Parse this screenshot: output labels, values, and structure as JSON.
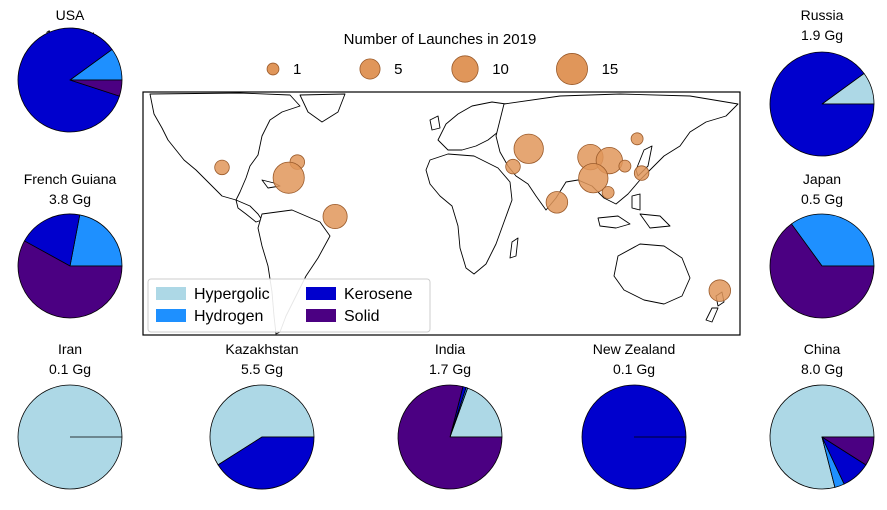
{
  "chart_data": [
    {
      "type": "scatter",
      "title": "Number of Launches in 2019",
      "size_legend": {
        "values": [
          1,
          5,
          10,
          15
        ],
        "labels": [
          "1",
          "5",
          "10",
          "15"
        ]
      },
      "marker_color": "#e0965a",
      "launch_sites": [
        {
          "lon": -120.6,
          "lat": 34.7,
          "launches": 2
        },
        {
          "lon": -75.5,
          "lat": 37.9,
          "launches": 2
        },
        {
          "lon": -80.6,
          "lat": 28.5,
          "launches": 15
        },
        {
          "lon": -52.8,
          "lat": 5.2,
          "launches": 8
        },
        {
          "lon": 63.3,
          "lat": 45.9,
          "launches": 13
        },
        {
          "lon": 53.9,
          "lat": 35.2,
          "launches": 2
        },
        {
          "lon": 80.2,
          "lat": 13.7,
          "launches": 6
        },
        {
          "lon": 100.3,
          "lat": 40.9,
          "launches": 9
        },
        {
          "lon": 111.6,
          "lat": 38.8,
          "launches": 10
        },
        {
          "lon": 102.0,
          "lat": 28.2,
          "launches": 13
        },
        {
          "lon": 110.9,
          "lat": 19.6,
          "launches": 1
        },
        {
          "lon": 121.0,
          "lat": 35.5,
          "launches": 1
        },
        {
          "lon": 128.3,
          "lat": 51.9,
          "launches": 1
        },
        {
          "lon": 131.0,
          "lat": 31.3,
          "launches": 2
        },
        {
          "lon": 177.9,
          "lat": -39.3,
          "launches": 6
        }
      ]
    },
    {
      "type": "pie",
      "legend": {
        "placement": "bottom-left",
        "entries": [
          {
            "label": "Hypergolic",
            "color": "#add8e6"
          },
          {
            "label": "Kerosene",
            "color": "#0000cd"
          },
          {
            "label": "Hydrogen",
            "color": "#1e90ff"
          },
          {
            "label": "Solid",
            "color": "#4b0082"
          }
        ]
      },
      "categories": [
        "Hypergolic",
        "Hydrogen",
        "Kerosene",
        "Solid"
      ],
      "colors": [
        "#add8e6",
        "#1e90ff",
        "#0000cd",
        "#4b0082"
      ],
      "pies": [
        {
          "name": "USA",
          "total": "10.7 Gg",
          "values": [
            0,
            10.0,
            85.0,
            5.0
          ]
        },
        {
          "name": "Russia",
          "total": "1.9 Gg",
          "values": [
            10.0,
            0,
            90.0,
            0
          ]
        },
        {
          "name": "French Guiana",
          "total": "3.8 Gg",
          "values": [
            0,
            22.0,
            20.0,
            58.0
          ]
        },
        {
          "name": "Japan",
          "total": "0.5 Gg",
          "values": [
            0,
            35.0,
            0,
            65.0
          ]
        },
        {
          "name": "Iran",
          "total": "0.1 Gg",
          "values": [
            100.0,
            0,
            0,
            0
          ]
        },
        {
          "name": "Kazakhstan",
          "total": "5.5 Gg",
          "values": [
            59.0,
            0,
            41.0,
            0
          ]
        },
        {
          "name": "India",
          "total": "1.7 Gg",
          "values": [
            19.5,
            0.5,
            1.0,
            79.0
          ]
        },
        {
          "name": "New Zealand",
          "total": "0.1 Gg",
          "values": [
            0,
            0,
            100.0,
            0
          ]
        },
        {
          "name": "China",
          "total": "8.0 Gg",
          "values": [
            79.0,
            3.0,
            9.0,
            9.0
          ]
        }
      ]
    }
  ]
}
